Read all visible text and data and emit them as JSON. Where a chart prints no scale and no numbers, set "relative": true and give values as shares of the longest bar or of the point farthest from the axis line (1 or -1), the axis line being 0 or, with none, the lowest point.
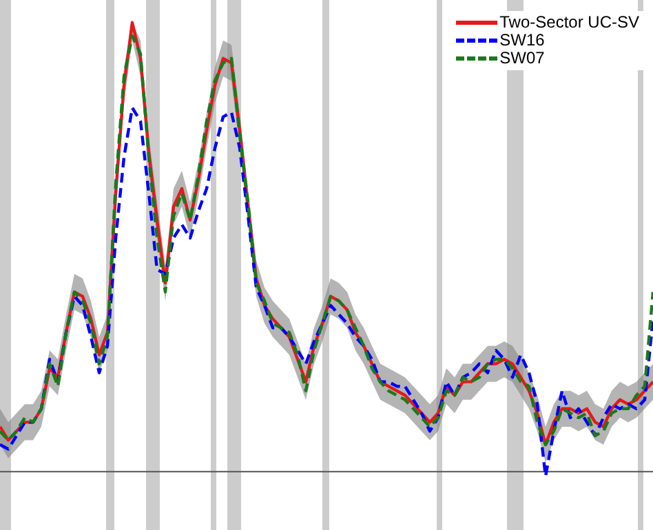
{
  "chart_data": {
    "type": "line",
    "relative": true,
    "tick_labels": false,
    "legend": "top right",
    "categories": [
      null,
      null,
      null,
      null,
      null,
      null,
      null,
      null,
      null,
      null,
      null,
      null,
      null,
      null,
      null,
      null,
      null,
      null,
      null,
      null,
      null,
      null,
      null,
      null,
      null,
      null,
      null,
      null,
      null,
      null,
      null,
      null,
      null,
      null,
      null,
      null,
      null,
      null,
      null,
      null,
      null,
      null,
      null,
      null,
      null,
      null,
      null,
      null,
      null,
      null,
      null,
      null,
      null,
      null,
      null,
      null,
      null,
      null,
      null,
      null,
      null,
      null,
      null,
      null,
      null,
      null,
      null,
      null,
      null,
      null,
      null,
      null,
      null,
      null,
      null,
      null,
      null,
      null,
      null,
      null
    ],
    "series": [
      {
        "name": "Two-Sector UC-SV",
        "color": "#e41a1c",
        "line_style": "solid",
        "values": [
          0.1,
          0.07,
          0.09,
          0.11,
          0.11,
          0.14,
          0.23,
          0.21,
          0.31,
          0.4,
          0.39,
          0.34,
          0.26,
          0.31,
          0.62,
          0.86,
          1.0,
          0.92,
          0.71,
          0.56,
          0.42,
          0.59,
          0.63,
          0.56,
          0.65,
          0.76,
          0.86,
          0.92,
          0.91,
          0.76,
          0.59,
          0.43,
          0.37,
          0.34,
          0.32,
          0.3,
          0.25,
          0.2,
          0.28,
          0.33,
          0.39,
          0.38,
          0.36,
          0.31,
          0.28,
          0.24,
          0.2,
          0.19,
          0.18,
          0.17,
          0.15,
          0.13,
          0.11,
          0.13,
          0.19,
          0.17,
          0.2,
          0.2,
          0.22,
          0.24,
          0.24,
          0.25,
          0.24,
          0.21,
          0.18,
          0.13,
          0.06,
          0.11,
          0.14,
          0.14,
          0.13,
          0.14,
          0.11,
          0.1,
          0.14,
          0.16,
          0.15,
          0.16,
          0.18,
          0.2
        ],
        "lower": [
          0.06,
          0.03,
          0.05,
          0.07,
          0.07,
          0.1,
          0.19,
          0.17,
          0.27,
          0.36,
          0.35,
          0.3,
          0.22,
          0.27,
          0.58,
          0.82,
          0.96,
          0.88,
          0.67,
          0.52,
          0.38,
          0.55,
          0.59,
          0.52,
          0.61,
          0.72,
          0.82,
          0.88,
          0.87,
          0.72,
          0.55,
          0.39,
          0.33,
          0.3,
          0.28,
          0.26,
          0.21,
          0.16,
          0.24,
          0.29,
          0.35,
          0.34,
          0.32,
          0.27,
          0.24,
          0.2,
          0.16,
          0.15,
          0.14,
          0.13,
          0.11,
          0.09,
          0.07,
          0.09,
          0.15,
          0.13,
          0.16,
          0.16,
          0.18,
          0.2,
          0.2,
          0.21,
          0.2,
          0.17,
          0.14,
          0.09,
          0.02,
          0.07,
          0.1,
          0.1,
          0.09,
          0.1,
          0.07,
          0.06,
          0.1,
          0.12,
          0.11,
          0.12,
          0.14,
          0.16
        ],
        "upper": [
          0.14,
          0.11,
          0.13,
          0.15,
          0.15,
          0.18,
          0.27,
          0.25,
          0.35,
          0.44,
          0.43,
          0.38,
          0.3,
          0.35,
          0.66,
          0.9,
          1.0,
          0.96,
          0.75,
          0.6,
          0.46,
          0.63,
          0.67,
          0.6,
          0.69,
          0.8,
          0.9,
          0.96,
          0.95,
          0.8,
          0.63,
          0.47,
          0.41,
          0.38,
          0.36,
          0.34,
          0.29,
          0.24,
          0.32,
          0.37,
          0.43,
          0.42,
          0.4,
          0.35,
          0.32,
          0.28,
          0.24,
          0.23,
          0.22,
          0.21,
          0.19,
          0.17,
          0.15,
          0.17,
          0.23,
          0.21,
          0.24,
          0.24,
          0.26,
          0.28,
          0.28,
          0.29,
          0.28,
          0.25,
          0.22,
          0.17,
          0.1,
          0.15,
          0.18,
          0.18,
          0.17,
          0.18,
          0.15,
          0.14,
          0.18,
          0.2,
          0.19,
          0.2,
          0.22,
          0.24
        ]
      },
      {
        "name": "SW16",
        "color": "#0000ff",
        "line_style": "dashed",
        "values": [
          0.06,
          0.05,
          0.08,
          0.11,
          0.11,
          0.14,
          0.25,
          0.2,
          0.31,
          0.39,
          0.37,
          0.3,
          0.22,
          0.28,
          0.52,
          0.7,
          0.81,
          0.78,
          0.62,
          0.45,
          0.44,
          0.52,
          0.55,
          0.52,
          0.58,
          0.63,
          0.72,
          0.79,
          0.8,
          0.72,
          0.57,
          0.41,
          0.37,
          0.32,
          0.32,
          0.3,
          0.27,
          0.24,
          0.29,
          0.33,
          0.37,
          0.35,
          0.33,
          0.3,
          0.28,
          0.25,
          0.2,
          0.2,
          0.19,
          0.19,
          0.16,
          0.13,
          0.09,
          0.12,
          0.2,
          0.17,
          0.21,
          0.22,
          0.24,
          0.22,
          0.27,
          0.25,
          0.21,
          0.26,
          0.22,
          0.15,
          -0.01,
          0.09,
          0.18,
          0.12,
          0.14,
          0.11,
          0.08,
          0.12,
          0.15,
          0.14,
          0.15,
          0.14,
          0.16,
          0.34
        ]
      },
      {
        "name": "SW07",
        "color": "#1a7a1a",
        "line_style": "dashed",
        "values": [
          0.09,
          0.07,
          0.09,
          0.12,
          0.11,
          0.14,
          0.24,
          0.19,
          0.31,
          0.4,
          0.38,
          0.33,
          0.24,
          0.3,
          0.64,
          0.88,
          0.97,
          0.93,
          0.7,
          0.52,
          0.4,
          0.57,
          0.62,
          0.56,
          0.66,
          0.78,
          0.87,
          0.91,
          0.92,
          0.75,
          0.6,
          0.42,
          0.38,
          0.33,
          0.32,
          0.31,
          0.26,
          0.18,
          0.27,
          0.33,
          0.39,
          0.38,
          0.36,
          0.32,
          0.28,
          0.23,
          0.2,
          0.18,
          0.17,
          0.16,
          0.14,
          0.12,
          0.1,
          0.12,
          0.18,
          0.17,
          0.21,
          0.2,
          0.21,
          0.24,
          0.25,
          0.25,
          0.23,
          0.2,
          0.19,
          0.11,
          0.06,
          0.09,
          0.14,
          0.13,
          0.12,
          0.13,
          0.08,
          0.09,
          0.13,
          0.14,
          0.14,
          0.17,
          0.19,
          0.4
        ]
      }
    ]
  }
}
